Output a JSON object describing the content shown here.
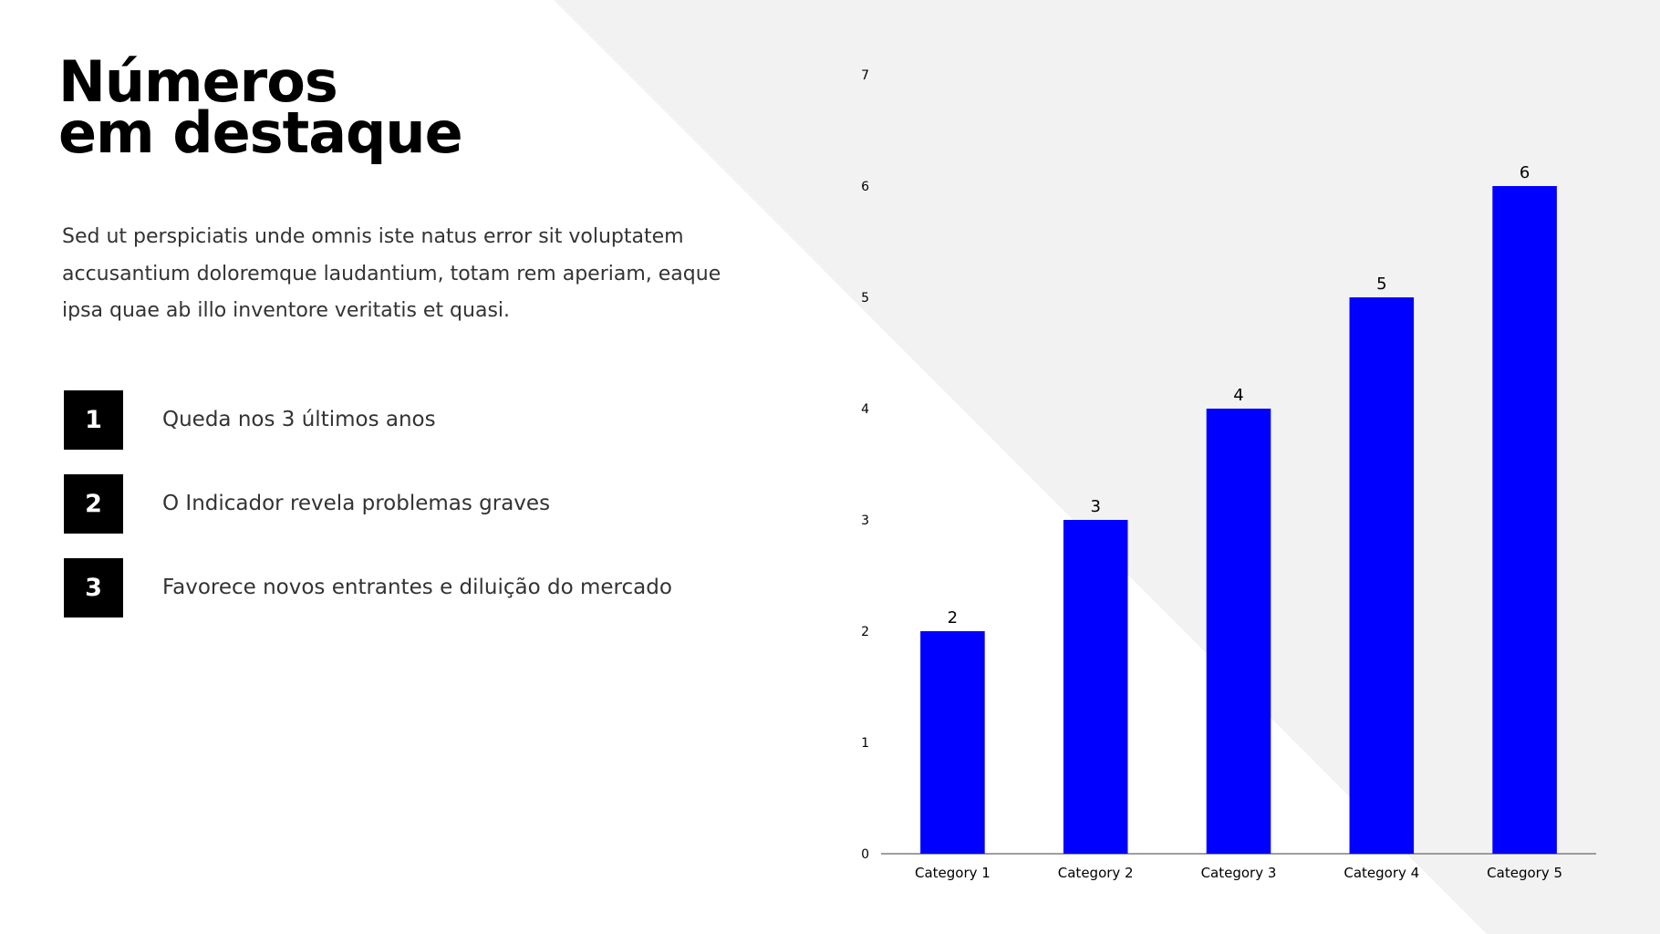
{
  "theme": {
    "bar_color": "#0000ff",
    "background_accent": "#f2f2f2"
  },
  "heading": {
    "line1": "Números",
    "line2": "em destaque"
  },
  "intro": "Sed ut perspiciatis unde omnis iste natus error sit voluptatem accusantium doloremque laudantium, totam rem aperiam, eaque ipsa quae ab illo inventore veritatis et quasi.",
  "list": [
    {
      "number": "1",
      "text": "Queda nos 3 últimos anos"
    },
    {
      "number": "2",
      "text": "O Indicador revela problemas graves"
    },
    {
      "number": "3",
      "text": "Favorece novos entrantes e diluição do mercado"
    }
  ],
  "chart_data": {
    "type": "bar",
    "categories": [
      "Category 1",
      "Category 2",
      "Category 3",
      "Category 4",
      "Category 5"
    ],
    "values": [
      2,
      3,
      4,
      5,
      6
    ],
    "data_labels": true,
    "ylim": [
      0,
      7
    ],
    "yticks": [
      0,
      1,
      2,
      3,
      4,
      5,
      6,
      7
    ],
    "grid": false,
    "title": "",
    "xlabel": "",
    "ylabel": ""
  }
}
